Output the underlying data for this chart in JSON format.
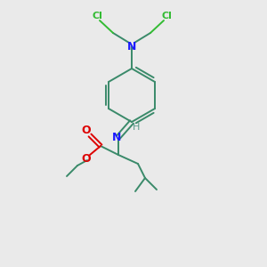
{
  "bg_color": "#eaeaea",
  "bond_color": "#3a8a6a",
  "N_color": "#1a1aff",
  "O_color": "#dd0000",
  "Cl_color": "#33bb33",
  "H_color": "#5a9a8a",
  "lw": 1.4,
  "figsize": [
    3.0,
    3.0
  ],
  "dpi": 100,
  "xlim": [
    0,
    300
  ],
  "ylim": [
    0,
    300
  ]
}
